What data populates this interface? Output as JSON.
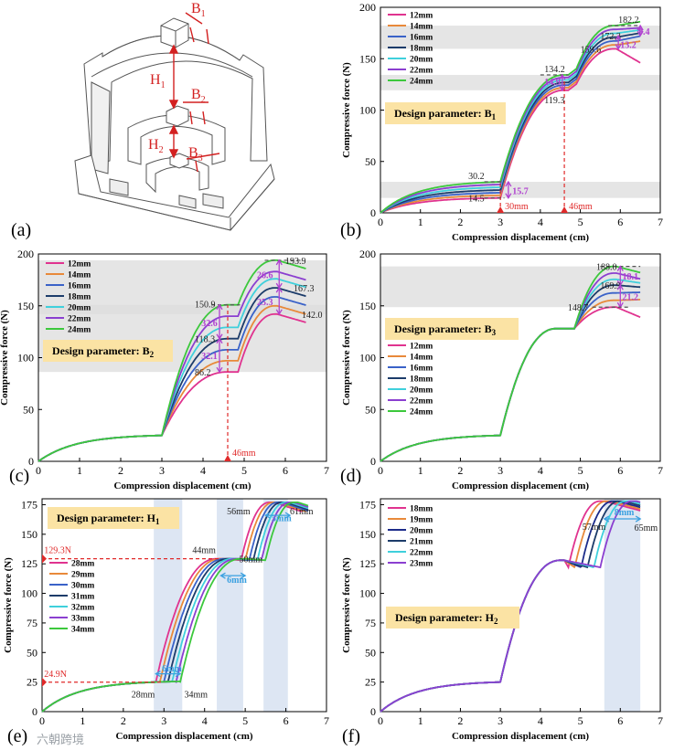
{
  "figure": {
    "labels": {
      "a": "(a)",
      "b": "(b)",
      "c": "(c)",
      "d": "(d)",
      "e": "(e)",
      "f": "(f)"
    },
    "watermark": "六朝跨境"
  },
  "diagram": {
    "B1": "B",
    "B1_sub": "1",
    "B2": "B",
    "B2_sub": "2",
    "B3": "B",
    "B3_sub": "3",
    "H1": "H",
    "H1_sub": "1",
    "H2": "H",
    "H2_sub": "2"
  },
  "chart_data": [
    {
      "id": "b",
      "type": "line",
      "title": "Design parameter: B",
      "title_sub": "1",
      "xlabel": "Compression displacement (cm)",
      "ylabel": "Compressive force (N)",
      "xlim": [
        0,
        7
      ],
      "ylim": [
        0,
        200
      ],
      "xticks": [
        0,
        1,
        2,
        3,
        4,
        5,
        6,
        7
      ],
      "yticks": [
        0,
        50,
        100,
        150,
        200
      ],
      "legend_loc": "top-left",
      "bands": [
        [
          14.5,
          30.2
        ],
        [
          119.3,
          134.2
        ],
        [
          159.6,
          182.2
        ]
      ],
      "series": [
        {
          "name": "12mm",
          "color": "#e0338f",
          "p": [
            14.5,
            119.3,
            159.6,
            146
          ]
        },
        {
          "name": "14mm",
          "color": "#e8893a",
          "p": [
            17.0,
            121.8,
            163.4,
            167
          ]
        },
        {
          "name": "16mm",
          "color": "#3a62c8",
          "p": [
            19.6,
            124.3,
            167.2,
            172
          ]
        },
        {
          "name": "18mm",
          "color": "#1c3c6a",
          "p": [
            22.2,
            126.8,
            170.9,
            175
          ]
        },
        {
          "name": "20mm",
          "color": "#3fd0dc",
          "p": [
            24.9,
            129.3,
            174.7,
            178
          ]
        },
        {
          "name": "22mm",
          "color": "#8b3fd0",
          "p": [
            27.6,
            131.7,
            178.5,
            180
          ]
        },
        {
          "name": "24mm",
          "color": "#3cc83c",
          "p": [
            30.2,
            134.2,
            182.2,
            186
          ]
        }
      ],
      "annotations": {
        "a1": "30.2",
        "a2": "14.5",
        "a3": "15.7",
        "a4": "134.2",
        "a5": "14.9",
        "a6": "119.3",
        "a7": "182.2",
        "a8": "172.3",
        "a9": "159.6",
        "a10": "13.2",
        "a11": "9.4",
        "m1": "30mm",
        "m2": "46mm"
      }
    },
    {
      "id": "c",
      "type": "line",
      "title": "Design parameter: B",
      "title_sub": "2",
      "xlabel": "Compression displacement (cm)",
      "ylabel": "Compressive force (N)",
      "xlim": [
        0,
        7
      ],
      "ylim": [
        0,
        200
      ],
      "xticks": [
        0,
        1,
        2,
        3,
        4,
        5,
        6,
        7
      ],
      "yticks": [
        0,
        50,
        100,
        150,
        200
      ],
      "legend_loc": "top-left",
      "bands": [
        [
          86.2,
          150.9
        ],
        [
          142.0,
          193.9
        ]
      ],
      "series": [
        {
          "name": "12mm",
          "color": "#e0338f",
          "p": [
            86.2,
            142.0
          ]
        },
        {
          "name": "14mm",
          "color": "#e8893a",
          "p": [
            97.0,
            150.0
          ]
        },
        {
          "name": "16mm",
          "color": "#3a62c8",
          "p": [
            107.6,
            158.6
          ]
        },
        {
          "name": "18mm",
          "color": "#1c3c6a",
          "p": [
            118.3,
            167.3
          ]
        },
        {
          "name": "20mm",
          "color": "#3fd0dc",
          "p": [
            129.2,
            176.0
          ]
        },
        {
          "name": "22mm",
          "color": "#8b3fd0",
          "p": [
            140.0,
            183.0
          ]
        },
        {
          "name": "24mm",
          "color": "#3cc83c",
          "p": [
            150.9,
            193.9
          ]
        }
      ],
      "annotations": {
        "a1": "150.9",
        "a2": "32.6",
        "a3": "118.3",
        "a4": "32.1",
        "a5": "86.2",
        "a6": "193.9",
        "a7": "26.6",
        "a8": "167.3",
        "a9": "25.3",
        "a10": "142.0",
        "m1": "46mm"
      }
    },
    {
      "id": "d",
      "type": "line",
      "title": "Design parameter: B",
      "title_sub": "3",
      "xlabel": "Compression displacement (cm)",
      "ylabel": "Compressive force (N)",
      "xlim": [
        0,
        7
      ],
      "ylim": [
        0,
        200
      ],
      "xticks": [
        0,
        1,
        2,
        3,
        4,
        5,
        6,
        7
      ],
      "yticks": [
        0,
        50,
        100,
        150,
        200
      ],
      "legend_loc": "center-left",
      "bands": [
        [
          148.7,
          188.0
        ]
      ],
      "series": [
        {
          "name": "12mm",
          "color": "#e0338f",
          "p": [
            148.7,
            139
          ]
        },
        {
          "name": "14mm",
          "color": "#e8893a",
          "p": [
            155.3,
            156
          ]
        },
        {
          "name": "16mm",
          "color": "#3a62c8",
          "p": [
            162.4,
            163
          ]
        },
        {
          "name": "18mm",
          "color": "#1c3c6a",
          "p": [
            169.9,
            168
          ]
        },
        {
          "name": "20mm",
          "color": "#3fd0dc",
          "p": [
            175.5,
            172
          ]
        },
        {
          "name": "22mm",
          "color": "#8b3fd0",
          "p": [
            181.5,
            176
          ]
        },
        {
          "name": "24mm",
          "color": "#3cc83c",
          "p": [
            188.0,
            182
          ]
        }
      ],
      "annotations": {
        "a1": "188.0",
        "a2": "18.1",
        "a3": "169.9",
        "a4": "21.2",
        "a5": "148.7"
      }
    },
    {
      "id": "e",
      "type": "line",
      "title": "Design parameter: H",
      "title_sub": "1",
      "xlabel": "Compression displacement (cm)",
      "ylabel": "Compressive force (N)",
      "xlim": [
        0,
        7
      ],
      "ylim": [
        0,
        180
      ],
      "xticks": [
        0,
        1,
        2,
        3,
        4,
        5,
        6,
        7
      ],
      "yticks": [
        0,
        25,
        50,
        75,
        100,
        125,
        150,
        175
      ],
      "legend_loc": "center-left",
      "bands_x": [
        [
          2.75,
          3.45
        ],
        [
          4.3,
          4.95
        ],
        [
          5.45,
          6.05
        ]
      ],
      "series": [
        {
          "name": "28mm",
          "color": "#e0338f",
          "s": 2.8
        },
        {
          "name": "29mm",
          "color": "#e8893a",
          "s": 2.9
        },
        {
          "name": "30mm",
          "color": "#3a62c8",
          "s": 3.0
        },
        {
          "name": "31mm",
          "color": "#1c3c6a",
          "s": 3.1
        },
        {
          "name": "32mm",
          "color": "#3fd0dc",
          "s": 3.2
        },
        {
          "name": "33mm",
          "color": "#8b3fd0",
          "s": 3.3
        },
        {
          "name": "34mm",
          "color": "#3cc83c",
          "s": 3.4
        }
      ],
      "annotations": {
        "a1": "129.3N",
        "a2": "24.9N",
        "a3": "44mm",
        "a4": "50mm",
        "a5": "56mm",
        "a6": "61mm",
        "a7": "28mm",
        "a8": "34mm",
        "a9": "6mm",
        "a10": "6mm",
        "a11": "5mm"
      }
    },
    {
      "id": "f",
      "type": "line",
      "title": "Design parameter: H",
      "title_sub": "2",
      "xlabel": "Compression displacement (cm)",
      "ylabel": "Compressive force (N)",
      "xlim": [
        0,
        7
      ],
      "ylim": [
        0,
        180
      ],
      "xticks": [
        0,
        1,
        2,
        3,
        4,
        5,
        6,
        7
      ],
      "yticks": [
        0,
        25,
        50,
        75,
        100,
        125,
        150,
        175
      ],
      "legend_loc": "top-left",
      "bands_x": [
        [
          5.6,
          6.5
        ]
      ],
      "series": [
        {
          "name": "18mm",
          "color": "#e0338f",
          "d": 0.0
        },
        {
          "name": "19mm",
          "color": "#e8893a",
          "d": 0.16
        },
        {
          "name": "20mm",
          "color": "#1c2c8a",
          "d": 0.32
        },
        {
          "name": "21mm",
          "color": "#1c3c6a",
          "d": 0.48
        },
        {
          "name": "22mm",
          "color": "#3fd0dc",
          "d": 0.64
        },
        {
          "name": "23mm",
          "color": "#8b3fd0",
          "d": 0.8
        }
      ],
      "annotations": {
        "a1": "57mm",
        "a2": "65mm",
        "a3": "8mm"
      }
    }
  ]
}
